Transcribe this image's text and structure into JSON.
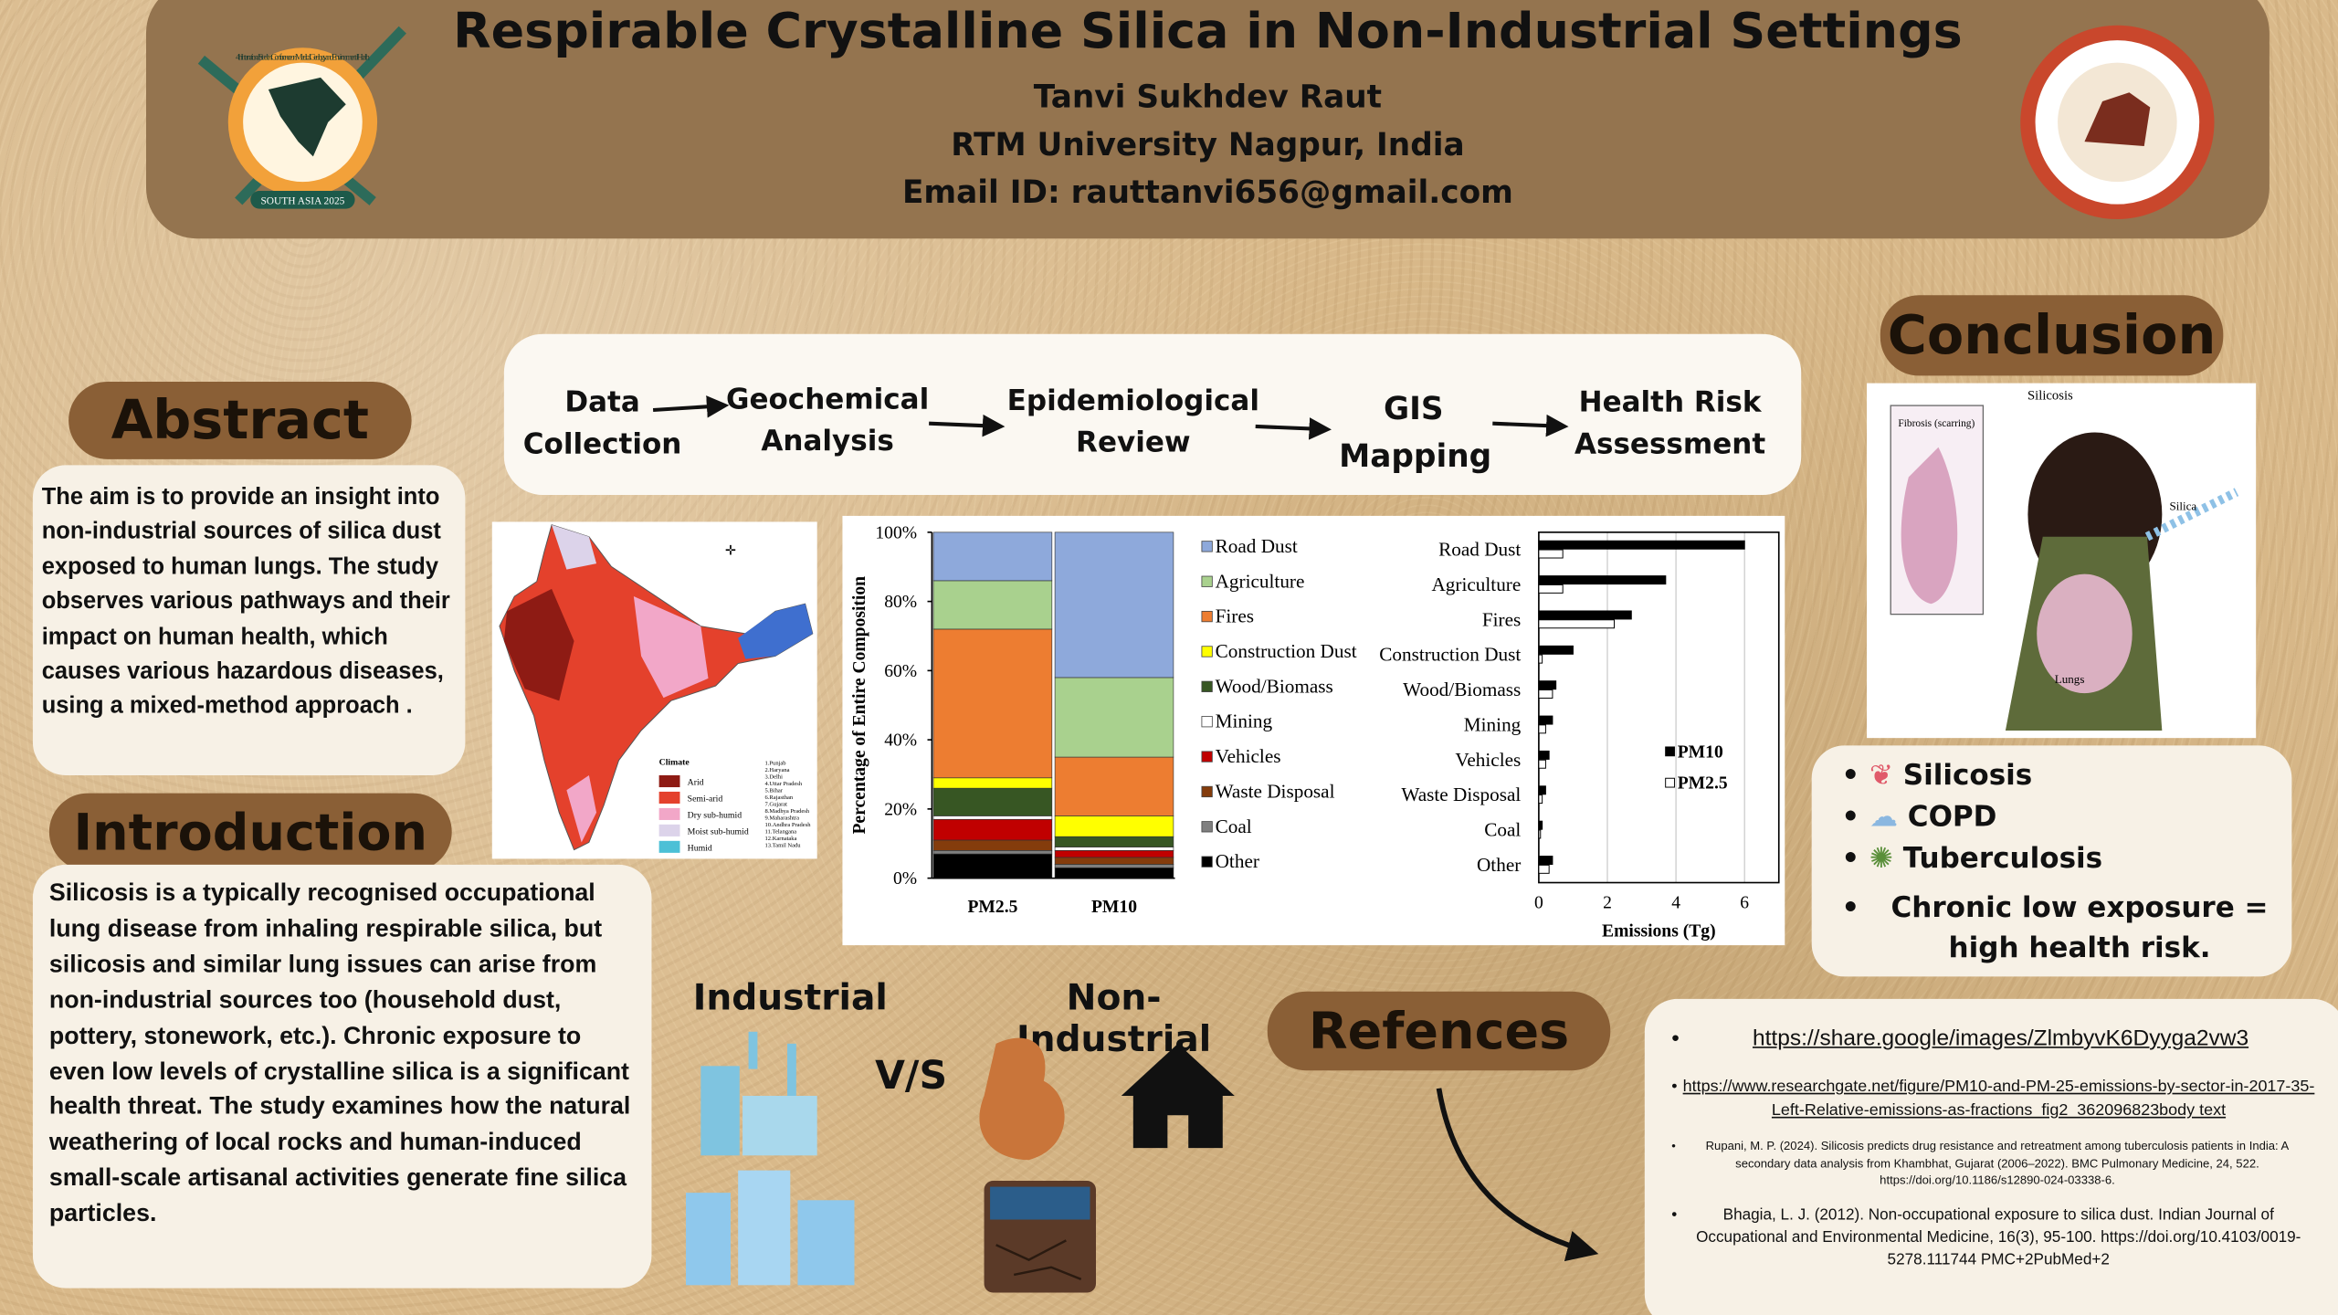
{
  "header": {
    "title": "Respirable Crystalline Silica in Non-Industrial Settings",
    "author": "Tanvi Sukhdev Raut",
    "affiliation": "RTM University Nagpur, India",
    "email": "Email ID: rauttanvi656@gmail.com",
    "logo_left_ring": "4th International Student Conference on Medical Geology and Environmental Health",
    "logo_left_banner": "SOUTH ASIA 2025"
  },
  "abstract": {
    "heading": "Abstract",
    "text": "The aim is to provide  an insight into non-industrial sources of silica dust exposed to human lungs. The study observes various pathways and their impact on human health, which causes various hazardous diseases, using a mixed-method approach ."
  },
  "introduction": {
    "heading": "Introduction",
    "text": "Silicosis is a typically recognised occupational lung disease from inhaling respirable silica, but silicosis and similar lung issues can arise from non-industrial sources too (household dust, pottery, stonework, etc.). Chronic exposure to even low levels of crystalline silica is a significant health threat. The study examines how the natural weathering of local rocks and human-induced small-scale artisanal activities generate fine silica particles."
  },
  "workflow": {
    "steps": [
      "Data Collection",
      "Geochemical Analysis",
      "Epidemiological Review",
      "GIS Mapping",
      "Health Risk Assessment"
    ]
  },
  "map": {
    "legend_title": "Climate",
    "legend": [
      {
        "label": "Arid",
        "color": "#8e1b14"
      },
      {
        "label": "Semi-arid",
        "color": "#e4412c"
      },
      {
        "label": "Dry sub-humid",
        "color": "#f2a7c8"
      },
      {
        "label": "Moist sub-humid",
        "color": "#dcd3ea"
      },
      {
        "label": "Humid",
        "color": "#4cc0d6"
      }
    ],
    "states": [
      "1.Punjab",
      "2.Haryana",
      "3.Delhi",
      "4.Uttar Pradesh",
      "5.Bihar",
      "6.Rajasthan",
      "7.Gujarat",
      "8.Madhya Pradesh",
      "9.Maharashtra",
      "10.Andhra Pradesh",
      "11.Telangana",
      "12.Karnataka",
      "13.Tamil Nadu"
    ]
  },
  "chart_data": [
    {
      "type": "bar",
      "stacked": true,
      "ylabel": "Percentage of Entire Composition",
      "categories": [
        "PM2.5",
        "PM10"
      ],
      "ylim": [
        0,
        100
      ],
      "yticks": [
        {
          "value": 0,
          "label": "0%"
        },
        {
          "value": 20,
          "label": "20%"
        },
        {
          "value": 40,
          "label": "40%"
        },
        {
          "value": 60,
          "label": "60%"
        },
        {
          "value": 80,
          "label": "80%"
        },
        {
          "value": 100,
          "label": "100%"
        }
      ],
      "series": [
        {
          "name": "Road Dust",
          "color": "#8ea9db",
          "values": [
            14,
            42
          ]
        },
        {
          "name": "Agriculture",
          "color": "#a9d18e",
          "values": [
            14,
            23
          ]
        },
        {
          "name": "Fires",
          "color": "#ed7d31",
          "values": [
            43,
            17
          ]
        },
        {
          "name": "Construction Dust",
          "color": "#ffff00",
          "values": [
            3,
            6
          ]
        },
        {
          "name": "Wood/Biomass",
          "color": "#375623",
          "values": [
            8,
            3
          ]
        },
        {
          "name": "Mining",
          "color": "#ffffff",
          "values": [
            1,
            1
          ]
        },
        {
          "name": "Vehicles",
          "color": "#c00000",
          "values": [
            6,
            2
          ]
        },
        {
          "name": "Waste Disposal",
          "color": "#843c0c",
          "values": [
            3,
            2
          ]
        },
        {
          "name": "Coal",
          "color": "#7f7f7f",
          "values": [
            1,
            1
          ]
        },
        {
          "name": "Other",
          "color": "#000000",
          "values": [
            7,
            3
          ]
        }
      ]
    },
    {
      "type": "bar",
      "orientation": "horizontal",
      "xlabel": "Emissions (Tg)",
      "grid": true,
      "legend": "right",
      "categories": [
        "Road Dust",
        "Agriculture",
        "Fires",
        "Construction Dust",
        "Wood/Biomass",
        "Mining",
        "Vehicles",
        "Waste Disposal",
        "Coal",
        "Other"
      ],
      "xlim": [
        0,
        7
      ],
      "xticks": [
        0,
        2,
        4,
        6
      ],
      "series": [
        {
          "name": "PM10",
          "color": "#000000",
          "values": [
            6.0,
            3.7,
            2.7,
            1.0,
            0.5,
            0.4,
            0.3,
            0.2,
            0.1,
            0.4
          ]
        },
        {
          "name": "PM2.5",
          "color": "#ffffff",
          "values": [
            0.7,
            0.7,
            2.2,
            0.1,
            0.4,
            0.2,
            0.2,
            0.1,
            0.05,
            0.3
          ]
        }
      ]
    }
  ],
  "comparison": {
    "industrial": "Industrial",
    "vs": "V/S",
    "non_industrial": "Non-Industrial"
  },
  "conclusion": {
    "heading": "Conclusion",
    "figure_labels": [
      "Silicosis",
      "Fibrosis (scarring)",
      "Silica",
      "Lungs"
    ],
    "items": [
      "Silicosis",
      "COPD",
      "Tuberculosis",
      "Chronic low exposure = high health risk."
    ]
  },
  "references": {
    "heading": "Refences",
    "items": [
      "https://share.google/images/ZlmbyvK6Dyyga2vw3",
      "https://www.researchgate.net/figure/PM10-and-PM-25-emissions-by-sector-in-2017-35-Left-Relative-emissions-as-fractions_fig2_362096823body text",
      "Rupani, M. P. (2024). Silicosis predicts drug resistance and retreatment among tuberculosis patients in India: A secondary data analysis from Khambhat, Gujarat (2006–2022). BMC Pulmonary Medicine, 24, 522. https://doi.org/10.1186/s12890-024-03338-6.",
      "Bhagia, L. J. (2012). Non-occupational exposure to silica dust. Indian Journal of Occupational and Environmental Medicine, 16(3), 95-100. https://doi.org/10.4103/0019-5278.111744 PMC+2PubMed+2"
    ]
  }
}
